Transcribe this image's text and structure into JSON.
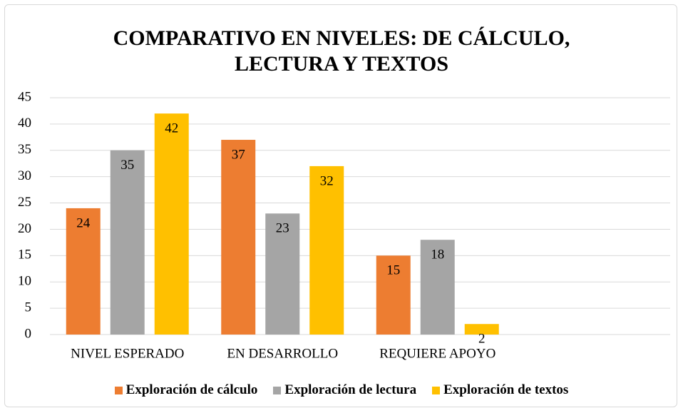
{
  "chart_data": {
    "type": "bar",
    "title": "COMPARATIVO EN NIVELES: DE CÁLCULO, LECTURA Y TEXTOS",
    "categories": [
      "NIVEL ESPERADO",
      "EN DESARROLLO",
      "REQUIERE APOYO",
      null
    ],
    "series": [
      {
        "name": "Exploración de cálculo",
        "color": "#ed7d31",
        "values": [
          24,
          37,
          15,
          null
        ]
      },
      {
        "name": "Exploración de lectura",
        "color": "#a5a5a5",
        "values": [
          35,
          23,
          18,
          null
        ]
      },
      {
        "name": "Exploración de textos",
        "color": "#ffc000",
        "values": [
          42,
          32,
          2,
          null
        ]
      }
    ],
    "ylim": [
      0,
      45
    ],
    "yticks": [
      0,
      5,
      10,
      15,
      20,
      25,
      30,
      35,
      40,
      45
    ],
    "grid": true,
    "legend": "bottom"
  }
}
